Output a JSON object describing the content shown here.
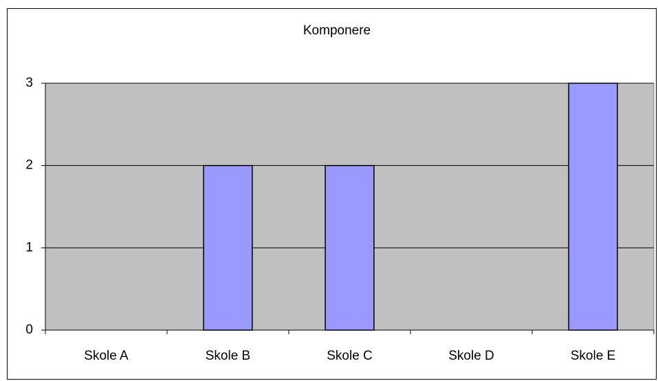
{
  "chart_data": {
    "type": "bar",
    "title": "Komponere",
    "categories": [
      "Skole A",
      "Skole B",
      "Skole C",
      "Skole D",
      "Skole E"
    ],
    "values": [
      0,
      2,
      2,
      0,
      3
    ],
    "color": "#9999ff",
    "ylim": [
      0,
      3
    ],
    "yticks": [
      0,
      1,
      2,
      3
    ],
    "grid": true
  }
}
